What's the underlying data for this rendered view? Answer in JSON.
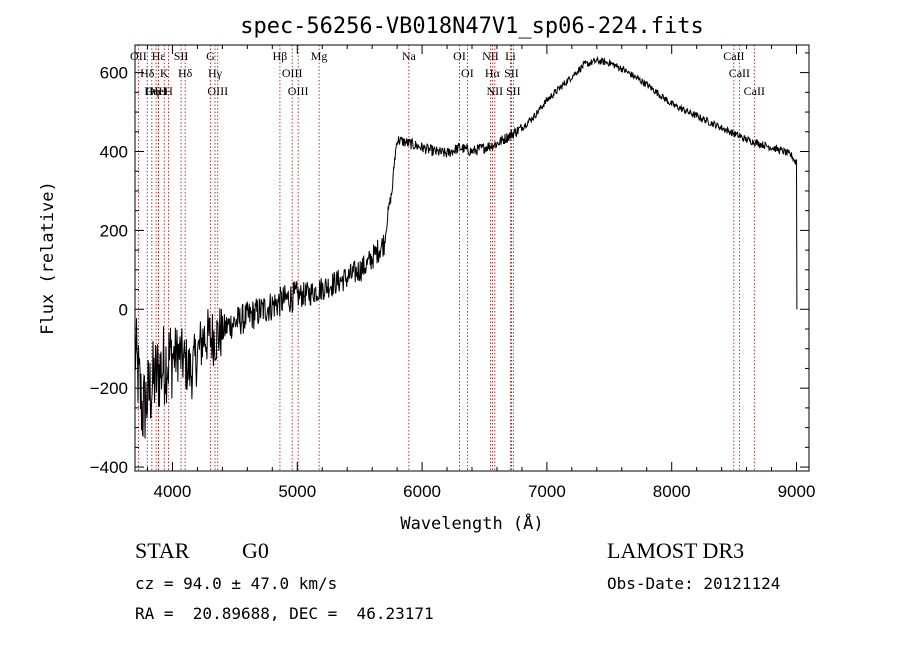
{
  "chart_data": {
    "type": "line",
    "title": "spec-56256-VB018N47V1_sp06-224.fits",
    "xlabel": "Wavelength (Å)",
    "ylabel": "Flux (relative)",
    "xlim": [
      3700,
      9100
    ],
    "ylim": [
      -410,
      670
    ],
    "xticks": [
      4000,
      5000,
      6000,
      7000,
      8000,
      9000
    ],
    "yticks": [
      -400,
      -200,
      0,
      200,
      400,
      600
    ],
    "spectrum_nodes": [
      [
        3700,
        -100
      ],
      [
        3760,
        -260
      ],
      [
        3850,
        -180
      ],
      [
        3950,
        -130
      ],
      [
        4050,
        -110
      ],
      [
        4150,
        -160
      ],
      [
        4250,
        -70
      ],
      [
        4350,
        -70
      ],
      [
        4450,
        -40
      ],
      [
        4600,
        -20
      ],
      [
        4800,
        10
      ],
      [
        4950,
        30
      ],
      [
        5100,
        40
      ],
      [
        5250,
        60
      ],
      [
        5400,
        80
      ],
      [
        5550,
        110
      ],
      [
        5650,
        150
      ],
      [
        5700,
        170
      ],
      [
        5730,
        250
      ],
      [
        5760,
        300
      ],
      [
        5780,
        380
      ],
      [
        5800,
        430
      ],
      [
        5900,
        420
      ],
      [
        6000,
        410
      ],
      [
        6100,
        400
      ],
      [
        6200,
        395
      ],
      [
        6300,
        410
      ],
      [
        6400,
        400
      ],
      [
        6500,
        410
      ],
      [
        6600,
        420
      ],
      [
        6700,
        440
      ],
      [
        6800,
        460
      ],
      [
        6900,
        490
      ],
      [
        7000,
        530
      ],
      [
        7100,
        560
      ],
      [
        7200,
        590
      ],
      [
        7300,
        620
      ],
      [
        7400,
        630
      ],
      [
        7500,
        625
      ],
      [
        7600,
        610
      ],
      [
        7700,
        590
      ],
      [
        7800,
        570
      ],
      [
        7900,
        545
      ],
      [
        8000,
        520
      ],
      [
        8100,
        505
      ],
      [
        8200,
        490
      ],
      [
        8300,
        475
      ],
      [
        8400,
        460
      ],
      [
        8500,
        445
      ],
      [
        8600,
        430
      ],
      [
        8700,
        420
      ],
      [
        8800,
        410
      ],
      [
        8900,
        400
      ],
      [
        8960,
        390
      ],
      [
        9000,
        370
      ],
      [
        9005,
        0
      ]
    ],
    "emission_lines": [
      {
        "name": "Hδ",
        "wave": 3798
      },
      {
        "name": "OII",
        "wave": 3727
      },
      {
        "name": "OIII",
        "wave": 3869
      },
      {
        "name": "Hε",
        "wave": 3889
      },
      {
        "name": "Hη",
        "wave": 3835
      },
      {
        "name": "HeI",
        "wave": 3889
      },
      {
        "name": "K",
        "wave": 3934
      },
      {
        "name": "H",
        "wave": 3969
      },
      {
        "name": "SII",
        "wave": 4069
      },
      {
        "name": "Hδ",
        "wave": 4102
      },
      {
        "name": "OIII",
        "wave": 4363
      },
      {
        "name": "Hγ",
        "wave": 4341
      },
      {
        "name": "G",
        "wave": 4305
      },
      {
        "name": "Hβ",
        "wave": 4861
      },
      {
        "name": "OIII",
        "wave": 4959
      },
      {
        "name": "OIII",
        "wave": 5007
      },
      {
        "name": "Mg",
        "wave": 5175
      },
      {
        "name": "Na",
        "wave": 5894
      },
      {
        "name": "OI",
        "wave": 6300
      },
      {
        "name": "OI",
        "wave": 6363
      },
      {
        "name": "Hα",
        "wave": 6563
      },
      {
        "name": "NII",
        "wave": 6548
      },
      {
        "name": "NII",
        "wave": 6583
      },
      {
        "name": "SII",
        "wave": 6716
      },
      {
        "name": "Li",
        "wave": 6708
      },
      {
        "name": "SII",
        "wave": 6731
      },
      {
        "name": "CaII",
        "wave": 8498
      },
      {
        "name": "CaII",
        "wave": 8542
      },
      {
        "name": "CaII",
        "wave": 8662
      }
    ]
  },
  "info": {
    "object_class": "STAR",
    "subclass": "G0",
    "survey": "LAMOST DR3",
    "cz": "cz = 94.0 ± 47.0 km/s",
    "obs_date": "Obs-Date: 20121124",
    "coords": "RA =  20.89688, DEC =  46.23171"
  }
}
